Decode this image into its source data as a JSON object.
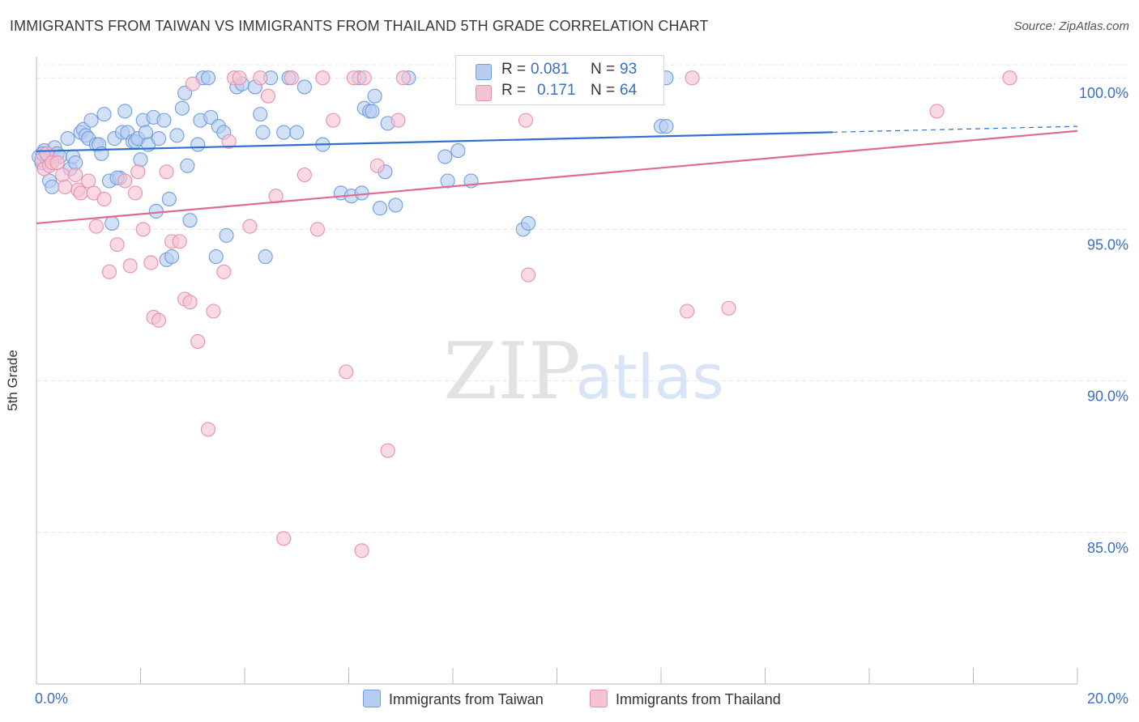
{
  "header": {
    "title": "IMMIGRANTS FROM TAIWAN VS IMMIGRANTS FROM THAILAND 5TH GRADE CORRELATION CHART",
    "source": "Source: ZipAtlas.com"
  },
  "watermark": {
    "zip": "ZIP",
    "atlas": "atlas"
  },
  "legend": {
    "taiwan": {
      "r_label": "R =",
      "r_value": "0.081",
      "n_label": "N =",
      "n_value": "93"
    },
    "thailand": {
      "r_label": "R =",
      "r_value": "0.171",
      "n_label": "N =",
      "n_value": "64"
    }
  },
  "colors": {
    "taiwan_fill": "#b7cdf0",
    "taiwan_stroke": "#6f9ee0",
    "taiwan_line": "#2f6fcf",
    "thailand_fill": "#f6c3d3",
    "thailand_stroke": "#e98fae",
    "thailand_line": "#e06a94",
    "axis_value": "#3a6fc2",
    "grid": "#e4e4e4"
  },
  "chart_data": {
    "type": "scatter",
    "title": "IMMIGRANTS FROM TAIWAN VS IMMIGRANTS FROM THAILAND 5TH GRADE CORRELATION CHART",
    "xlabel": "",
    "ylabel": "5th Grade",
    "xlim": [
      0,
      20
    ],
    "ylim": [
      80.0,
      100.7
    ],
    "x_ticks": [
      "0.0%",
      "20.0%"
    ],
    "y_ticks": [
      {
        "value": 100,
        "label": "100.0%"
      },
      {
        "value": 95,
        "label": "95.0%"
      },
      {
        "value": 90,
        "label": "90.0%"
      },
      {
        "value": 85,
        "label": "85.0%"
      }
    ],
    "series": [
      {
        "name": "Immigrants from Taiwan",
        "points": [
          [
            0.05,
            97.4
          ],
          [
            0.1,
            97.2
          ],
          [
            0.15,
            97.6
          ],
          [
            0.2,
            97.3
          ],
          [
            0.25,
            96.6
          ],
          [
            0.3,
            96.4
          ],
          [
            0.35,
            97.7
          ],
          [
            0.4,
            97.5
          ],
          [
            0.45,
            97.4
          ],
          [
            0.6,
            98.0
          ],
          [
            0.65,
            97.0
          ],
          [
            0.7,
            97.4
          ],
          [
            0.75,
            97.2
          ],
          [
            0.85,
            98.2
          ],
          [
            0.9,
            98.3
          ],
          [
            0.95,
            98.1
          ],
          [
            1.0,
            98.0
          ],
          [
            1.05,
            98.6
          ],
          [
            1.15,
            97.8
          ],
          [
            1.2,
            97.8
          ],
          [
            1.25,
            97.5
          ],
          [
            1.3,
            98.8
          ],
          [
            1.4,
            96.6
          ],
          [
            1.45,
            95.2
          ],
          [
            1.5,
            98.0
          ],
          [
            1.6,
            96.7
          ],
          [
            1.65,
            98.2
          ],
          [
            1.7,
            98.9
          ],
          [
            1.75,
            98.2
          ],
          [
            1.85,
            97.9
          ],
          [
            1.9,
            97.9
          ],
          [
            1.95,
            98.0
          ],
          [
            2.0,
            97.3
          ],
          [
            2.05,
            98.6
          ],
          [
            2.1,
            98.2
          ],
          [
            2.15,
            97.8
          ],
          [
            2.25,
            98.7
          ],
          [
            2.3,
            95.6
          ],
          [
            2.35,
            98.0
          ],
          [
            2.45,
            98.6
          ],
          [
            2.5,
            94.0
          ],
          [
            2.55,
            96.0
          ],
          [
            2.6,
            94.1
          ],
          [
            2.7,
            98.1
          ],
          [
            2.8,
            99.0
          ],
          [
            2.85,
            99.5
          ],
          [
            2.9,
            97.1
          ],
          [
            2.95,
            95.3
          ],
          [
            3.1,
            97.8
          ],
          [
            3.15,
            98.6
          ],
          [
            3.2,
            100.0
          ],
          [
            3.3,
            100.0
          ],
          [
            3.35,
            98.7
          ],
          [
            3.45,
            94.1
          ],
          [
            3.5,
            98.4
          ],
          [
            3.6,
            98.2
          ],
          [
            3.65,
            94.8
          ],
          [
            3.85,
            99.7
          ],
          [
            3.95,
            99.8
          ],
          [
            4.2,
            99.7
          ],
          [
            4.3,
            98.8
          ],
          [
            4.35,
            98.2
          ],
          [
            4.4,
            94.1
          ],
          [
            4.5,
            100.0
          ],
          [
            4.75,
            98.2
          ],
          [
            4.85,
            100.0
          ],
          [
            5.0,
            98.2
          ],
          [
            5.15,
            99.7
          ],
          [
            5.5,
            97.8
          ],
          [
            5.85,
            96.2
          ],
          [
            6.05,
            96.1
          ],
          [
            6.2,
            100.0
          ],
          [
            6.25,
            96.2
          ],
          [
            6.3,
            99.0
          ],
          [
            6.4,
            98.9
          ],
          [
            6.45,
            98.9
          ],
          [
            6.5,
            99.4
          ],
          [
            6.6,
            95.7
          ],
          [
            6.7,
            96.9
          ],
          [
            6.75,
            98.5
          ],
          [
            6.9,
            95.8
          ],
          [
            7.15,
            100.0
          ],
          [
            7.85,
            97.4
          ],
          [
            7.9,
            96.6
          ],
          [
            8.1,
            97.6
          ],
          [
            8.35,
            96.6
          ],
          [
            9.35,
            95.0
          ],
          [
            9.45,
            95.2
          ],
          [
            12.0,
            98.4
          ],
          [
            12.1,
            98.4
          ],
          [
            12.1,
            100.0
          ],
          [
            0.12,
            97.5
          ],
          [
            1.55,
            96.7
          ]
        ]
      },
      {
        "name": "Immigrants from Thailand",
        "points": [
          [
            0.1,
            97.3
          ],
          [
            0.15,
            97.0
          ],
          [
            0.2,
            97.5
          ],
          [
            0.25,
            97.1
          ],
          [
            0.3,
            97.2
          ],
          [
            0.4,
            97.2
          ],
          [
            0.5,
            96.8
          ],
          [
            0.55,
            96.4
          ],
          [
            0.75,
            96.8
          ],
          [
            0.8,
            96.3
          ],
          [
            0.85,
            96.2
          ],
          [
            1.0,
            96.6
          ],
          [
            1.1,
            96.2
          ],
          [
            1.15,
            95.1
          ],
          [
            1.3,
            96.0
          ],
          [
            1.4,
            93.6
          ],
          [
            1.55,
            94.5
          ],
          [
            1.7,
            96.6
          ],
          [
            1.8,
            93.8
          ],
          [
            1.9,
            96.2
          ],
          [
            1.95,
            96.9
          ],
          [
            2.05,
            95.0
          ],
          [
            2.2,
            93.9
          ],
          [
            2.25,
            92.1
          ],
          [
            2.35,
            92.0
          ],
          [
            2.5,
            96.9
          ],
          [
            2.6,
            94.6
          ],
          [
            2.75,
            94.6
          ],
          [
            2.85,
            92.7
          ],
          [
            2.95,
            92.6
          ],
          [
            3.0,
            99.8
          ],
          [
            3.1,
            91.3
          ],
          [
            3.3,
            88.4
          ],
          [
            3.4,
            92.3
          ],
          [
            3.6,
            93.6
          ],
          [
            3.7,
            97.9
          ],
          [
            3.8,
            100.0
          ],
          [
            3.9,
            100.0
          ],
          [
            4.1,
            95.1
          ],
          [
            4.3,
            100.0
          ],
          [
            4.45,
            99.4
          ],
          [
            4.6,
            96.1
          ],
          [
            4.75,
            84.8
          ],
          [
            4.9,
            100.0
          ],
          [
            5.15,
            96.8
          ],
          [
            5.4,
            95.0
          ],
          [
            5.5,
            100.0
          ],
          [
            5.7,
            98.6
          ],
          [
            5.95,
            90.3
          ],
          [
            6.1,
            100.0
          ],
          [
            6.25,
            84.4
          ],
          [
            6.3,
            100.0
          ],
          [
            6.55,
            97.1
          ],
          [
            6.75,
            87.7
          ],
          [
            6.95,
            98.6
          ],
          [
            7.05,
            100.0
          ],
          [
            9.4,
            98.6
          ],
          [
            9.45,
            93.5
          ],
          [
            11.85,
            100.0
          ],
          [
            12.5,
            92.3
          ],
          [
            12.6,
            100.0
          ],
          [
            13.3,
            92.4
          ],
          [
            17.3,
            98.9
          ],
          [
            18.7,
            100.0
          ]
        ]
      }
    ],
    "trend_lines": [
      {
        "series": "Immigrants from Taiwan",
        "y_at_0": 97.58,
        "y_at_20": 98.4,
        "solid_until_x": 15.3
      },
      {
        "series": "Immigrants from Thailand",
        "y_at_0": 95.2,
        "y_at_20": 98.25
      }
    ]
  },
  "bottom_legend": {
    "taiwan_label": "Immigrants from Taiwan",
    "thailand_label": "Immigrants from Thailand"
  }
}
